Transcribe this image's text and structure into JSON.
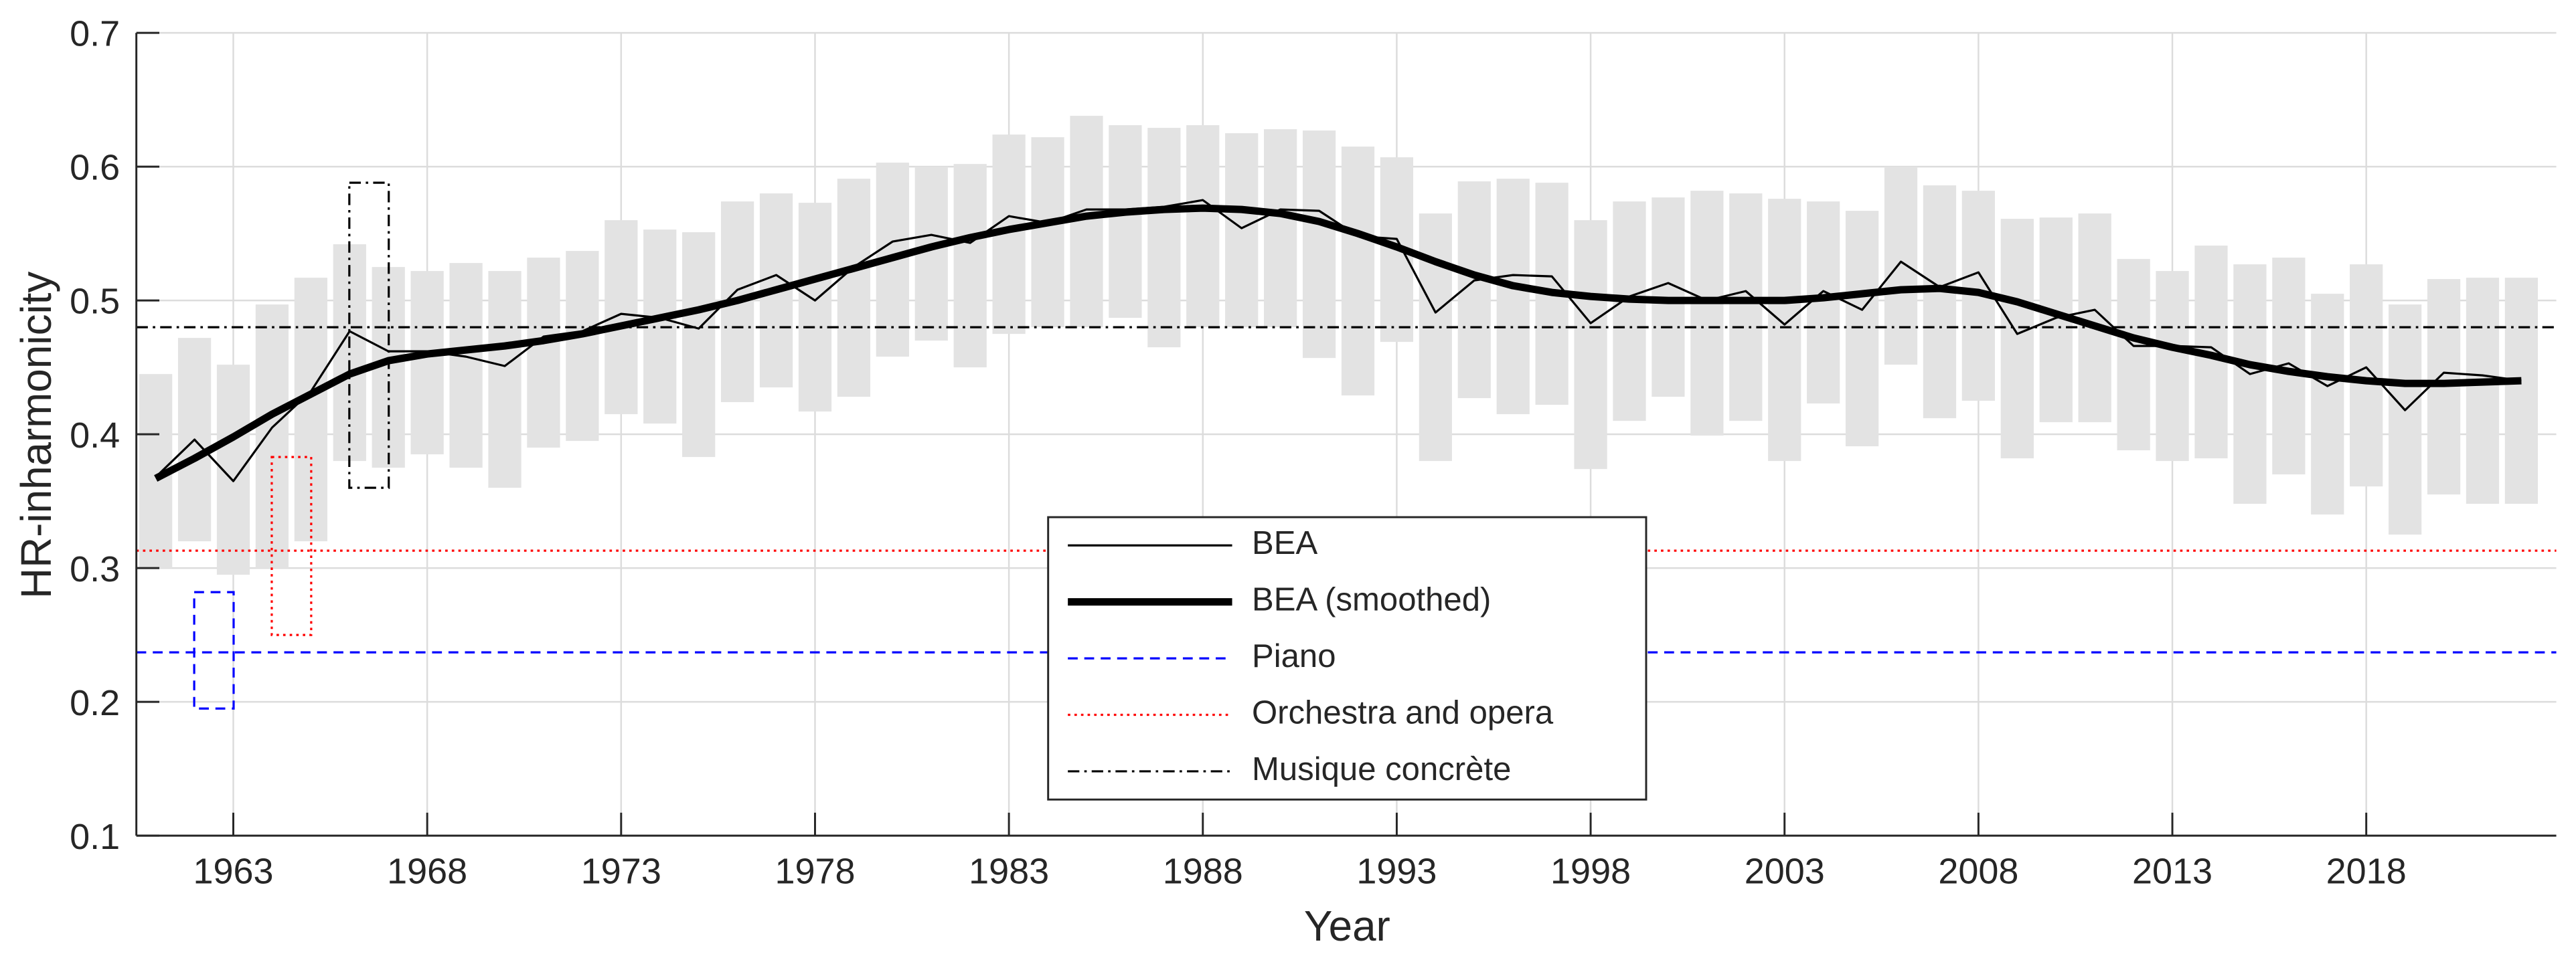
{
  "chart_data": {
    "type": "line",
    "xlabel": "Year",
    "ylabel": "HR-inharmonicity",
    "xlim": [
      1960.5,
      2022.9
    ],
    "ylim": [
      0.1,
      0.7
    ],
    "xticks": [
      1963,
      1968,
      1973,
      1978,
      1983,
      1988,
      1993,
      1998,
      2003,
      2008,
      2013,
      2018
    ],
    "yticks": [
      0.1,
      0.2,
      0.3,
      0.4,
      0.5,
      0.6,
      0.7
    ],
    "grid": true,
    "legend": "bottom-center",
    "x": [
      1961,
      1962,
      1963,
      1964,
      1965,
      1966,
      1967,
      1968,
      1969,
      1970,
      1971,
      1972,
      1973,
      1974,
      1975,
      1976,
      1977,
      1978,
      1979,
      1980,
      1981,
      1982,
      1983,
      1984,
      1985,
      1986,
      1987,
      1988,
      1989,
      1990,
      1991,
      1992,
      1993,
      1994,
      1995,
      1996,
      1997,
      1998,
      1999,
      2000,
      2001,
      2002,
      2003,
      2004,
      2005,
      2006,
      2007,
      2008,
      2009,
      2010,
      2011,
      2012,
      2013,
      2014,
      2015,
      2016,
      2017,
      2018,
      2019,
      2020,
      2021,
      2022
    ],
    "range": {
      "color": "#e3e3e3",
      "low": [
        0.3,
        0.32,
        0.295,
        0.3,
        0.32,
        0.38,
        0.375,
        0.385,
        0.375,
        0.36,
        0.39,
        0.395,
        0.415,
        0.408,
        0.383,
        0.424,
        0.435,
        0.417,
        0.428,
        0.458,
        0.47,
        0.45,
        0.475,
        0.48,
        0.48,
        0.487,
        0.465,
        0.48,
        0.48,
        0.48,
        0.457,
        0.429,
        0.469,
        0.38,
        0.427,
        0.415,
        0.422,
        0.374,
        0.41,
        0.428,
        0.399,
        0.41,
        0.38,
        0.423,
        0.391,
        0.452,
        0.412,
        0.425,
        0.382,
        0.409,
        0.409,
        0.388,
        0.38,
        0.382,
        0.348,
        0.37,
        0.34,
        0.361,
        0.325,
        0.355,
        0.348,
        0.348
      ],
      "high": [
        0.445,
        0.472,
        0.452,
        0.497,
        0.517,
        0.542,
        0.525,
        0.522,
        0.528,
        0.522,
        0.532,
        0.537,
        0.56,
        0.553,
        0.551,
        0.574,
        0.58,
        0.573,
        0.591,
        0.603,
        0.6,
        0.602,
        0.624,
        0.622,
        0.638,
        0.631,
        0.629,
        0.631,
        0.625,
        0.628,
        0.627,
        0.615,
        0.607,
        0.565,
        0.589,
        0.591,
        0.588,
        0.56,
        0.574,
        0.577,
        0.582,
        0.58,
        0.576,
        0.574,
        0.567,
        0.6,
        0.586,
        0.582,
        0.561,
        0.562,
        0.565,
        0.531,
        0.522,
        0.541,
        0.527,
        0.532,
        0.505,
        0.527,
        0.497,
        0.516,
        0.517,
        0.517
      ]
    },
    "series": [
      {
        "name": "BEA",
        "color": "#000000",
        "linestyle": "-",
        "linewidth": 1.3,
        "values": [
          0.368,
          0.396,
          0.365,
          0.405,
          0.432,
          0.477,
          0.462,
          0.462,
          0.458,
          0.451,
          0.473,
          0.477,
          0.49,
          0.487,
          0.479,
          0.508,
          0.519,
          0.5,
          0.525,
          0.544,
          0.549,
          0.543,
          0.563,
          0.558,
          0.568,
          0.568,
          0.57,
          0.575,
          0.554,
          0.568,
          0.567,
          0.548,
          0.546,
          0.491,
          0.515,
          0.519,
          0.518,
          0.483,
          0.503,
          0.513,
          0.5,
          0.507,
          0.482,
          0.507,
          0.493,
          0.529,
          0.51,
          0.521,
          0.475,
          0.487,
          0.493,
          0.466,
          0.466,
          0.465,
          0.445,
          0.453,
          0.436,
          0.45,
          0.418,
          0.446,
          0.444,
          0.44
        ]
      },
      {
        "name": "BEA (smoothed)",
        "color": "#000000",
        "linestyle": "-",
        "linewidth": 4.5,
        "values": [
          0.367,
          0.382,
          0.398,
          0.415,
          0.43,
          0.445,
          0.455,
          0.46,
          0.463,
          0.466,
          0.47,
          0.475,
          0.481,
          0.487,
          0.493,
          0.5,
          0.508,
          0.516,
          0.524,
          0.532,
          0.54,
          0.547,
          0.553,
          0.558,
          0.563,
          0.566,
          0.568,
          0.569,
          0.568,
          0.565,
          0.559,
          0.55,
          0.54,
          0.529,
          0.519,
          0.511,
          0.506,
          0.503,
          0.501,
          0.5,
          0.5,
          0.5,
          0.5,
          0.502,
          0.505,
          0.508,
          0.509,
          0.506,
          0.499,
          0.49,
          0.481,
          0.472,
          0.465,
          0.459,
          0.452,
          0.447,
          0.443,
          0.44,
          0.438,
          0.438,
          0.439,
          0.44
        ]
      },
      {
        "name": "Piano",
        "color": "#0000ff",
        "linestyle": "--",
        "linewidth": 1.3,
        "value": 0.237,
        "box": {
          "x": 1962.5,
          "low": 0.195,
          "high": 0.282
        }
      },
      {
        "name": "Orchestra and opera",
        "color": "#ff0000",
        "linestyle": ":",
        "linewidth": 1.3,
        "value": 0.313,
        "box": {
          "x": 1964.5,
          "low": 0.25,
          "high": 0.383
        }
      },
      {
        "name": "Musique concrète",
        "color": "#000000",
        "linestyle": "-.",
        "linewidth": 1.3,
        "value": 0.48,
        "box": {
          "x": 1966.5,
          "low": 0.36,
          "high": 0.588
        }
      }
    ]
  }
}
